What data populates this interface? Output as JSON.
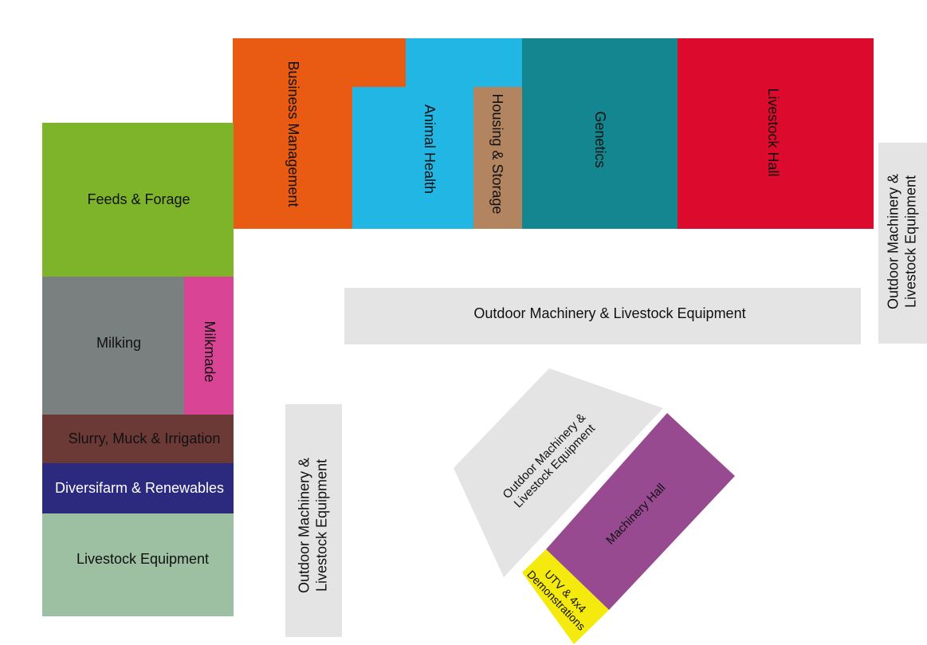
{
  "zones": {
    "business_management": {
      "label": "Business Management",
      "color": "#e95a13"
    },
    "animal_health": {
      "label": "Animal Health",
      "color": "#22b6e4"
    },
    "housing_storage": {
      "label": "Housing & Storage",
      "color": "#b28460"
    },
    "genetics": {
      "label": "Genetics",
      "color": "#14868f"
    },
    "livestock_hall": {
      "label": "Livestock Hall",
      "color": "#dc0a2c"
    },
    "feeds_forage": {
      "label": "Feeds & Forage",
      "color": "#7db42a"
    },
    "milking": {
      "label": "Milking",
      "color": "#7a7f80"
    },
    "milkmade": {
      "label": "Milkmade",
      "color": "#d94495"
    },
    "slurry": {
      "label": "Slurry, Muck & Irrigation",
      "color": "#6b3a36"
    },
    "diversifarm": {
      "label": "Diversifarm & Renewables",
      "color": "#2b2a7e"
    },
    "livestock_equipment": {
      "label": "Livestock Equipment",
      "color": "#9dbfa2"
    },
    "outdoor_center": {
      "label": "Outdoor Machinery & Livestock Equipment",
      "color": "#e4e4e4"
    },
    "outdoor_right": {
      "line1": "Outdoor Machinery &",
      "line2": "Livestock Equipment",
      "color": "#e4e4e4"
    },
    "outdoor_left": {
      "line1": "Outdoor Machinery &",
      "line2": "Livestock Equipment",
      "color": "#e4e4e4"
    },
    "outdoor_diagonal": {
      "line1": "Outdoor Machinery &",
      "line2": "Livestock Equipment",
      "color": "#e4e4e4"
    },
    "machinery_hall": {
      "label": "Machinery Hall",
      "color": "#974a8f"
    },
    "utv": {
      "line1": "UTV & 4x4",
      "line2": "Demonstrations",
      "color": "#f5ea0e"
    }
  }
}
